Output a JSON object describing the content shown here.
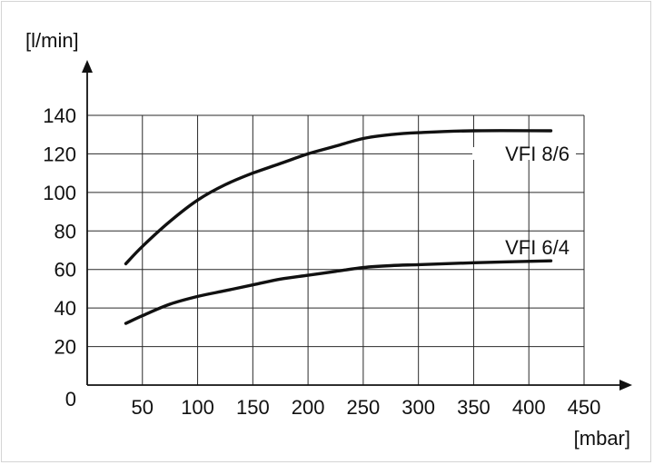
{
  "chart_data": {
    "type": "line",
    "ylabel": "[l/min]",
    "xlabel": "[mbar]",
    "x_ticks": [
      "50",
      "100",
      "150",
      "200",
      "250",
      "300",
      "350",
      "400",
      "450"
    ],
    "y_ticks": [
      "20",
      "40",
      "60",
      "80",
      "100",
      "120",
      "140"
    ],
    "origin_label": "0",
    "xlim": [
      0,
      450
    ],
    "ylim": [
      0,
      140
    ],
    "grid": true,
    "series": [
      {
        "name": "VFI 8/6",
        "x": [
          35,
          50,
          75,
          100,
          125,
          150,
          175,
          200,
          225,
          250,
          275,
          300,
          350,
          420
        ],
        "y": [
          63,
          72,
          85,
          96,
          104,
          110,
          115,
          120,
          124,
          128,
          130,
          131,
          132,
          132
        ]
      },
      {
        "name": "VFI 6/4",
        "x": [
          35,
          50,
          75,
          100,
          125,
          150,
          175,
          200,
          225,
          250,
          275,
          300,
          350,
          420
        ],
        "y": [
          32,
          36,
          42,
          46,
          49,
          52,
          55,
          57,
          59,
          61,
          62,
          62.5,
          63.5,
          64.5
        ]
      }
    ]
  }
}
